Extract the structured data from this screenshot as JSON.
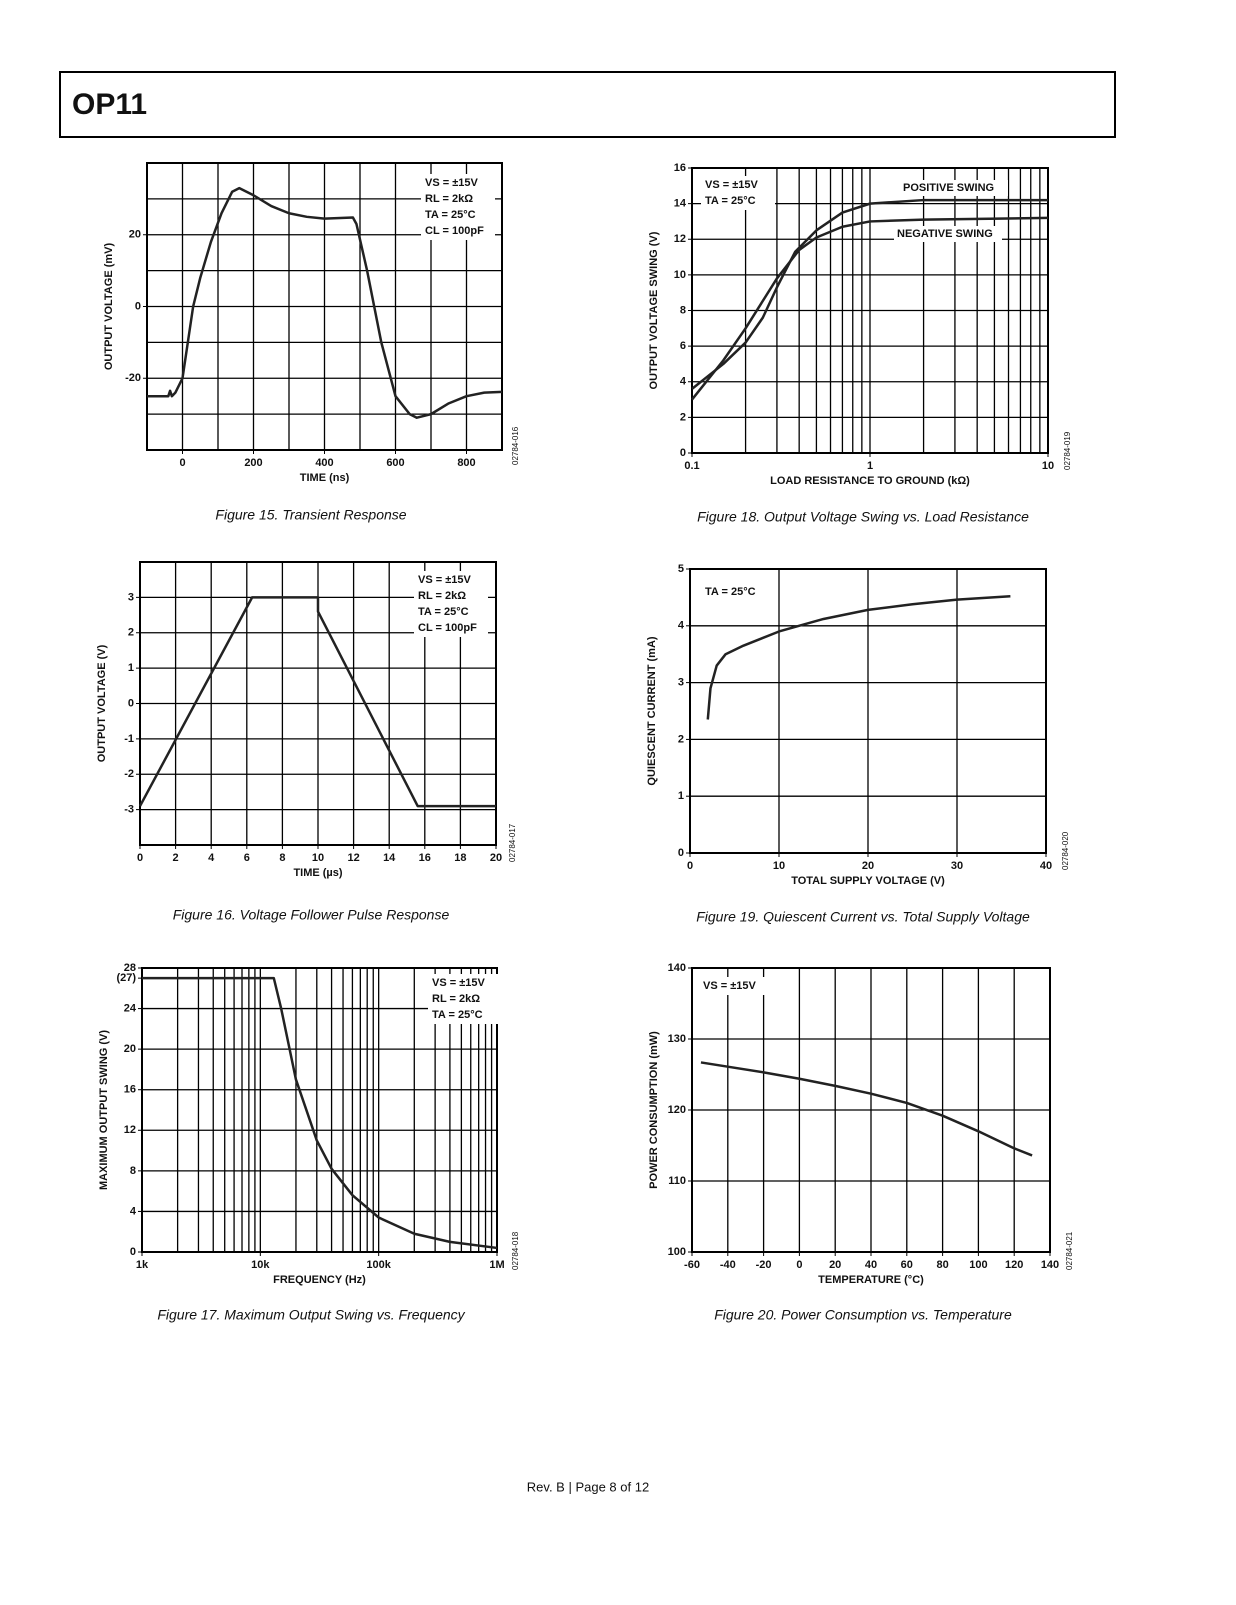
{
  "header": {
    "title": "OP11"
  },
  "footer": "Rev. B | Page 8 of 12",
  "chart_data": [
    {
      "type": "line",
      "title": "Figure 15. Transient Response",
      "xlabel": "TIME (ns)",
      "ylabel": "OUTPUT VOLTAGE (mV)",
      "code": "02784-016",
      "annotations": [
        "VS = ±15V",
        "RL = 2kΩ",
        "TA = 25°C",
        "CL = 100pF"
      ],
      "xlim": [
        -100,
        900
      ],
      "ylim": [
        -40,
        40
      ],
      "xticks": [
        0,
        200,
        400,
        600,
        800
      ],
      "yticks": [
        -20,
        0,
        20
      ],
      "xgrid": [
        -100,
        0,
        100,
        200,
        300,
        400,
        500,
        600,
        700,
        800,
        900
      ],
      "ygrid": [
        -40,
        -30,
        -20,
        -10,
        0,
        10,
        20,
        30,
        40
      ],
      "series": [
        {
          "color": "#222",
          "x": [
            -100,
            -40,
            -35,
            -30,
            -20,
            0,
            30,
            50,
            80,
            110,
            140,
            160,
            200,
            250,
            300,
            350,
            400,
            480,
            490,
            520,
            560,
            600,
            640,
            660,
            700,
            750,
            800,
            850,
            900
          ],
          "values": [
            -25,
            -25,
            -23.5,
            -25,
            -24,
            -20,
            0,
            8,
            18,
            26,
            32,
            33,
            31,
            28,
            26,
            25,
            24.5,
            24.8,
            23,
            10,
            -10,
            -25,
            -30,
            -31,
            -30,
            -27,
            -25,
            -24,
            -23.8
          ]
        }
      ]
    },
    {
      "type": "line",
      "title": "Figure 18. Output Voltage Swing vs. Load Resistance",
      "xlabel": "LOAD RESISTANCE TO GROUND (kΩ)",
      "ylabel": "OUTPUT VOLTAGE SWING (V)",
      "code": "02784-019",
      "annotations": [
        "VS = ±15V",
        "TA = 25°C"
      ],
      "xscale": "log",
      "xlim": [
        0.1,
        10
      ],
      "ylim": [
        0,
        16
      ],
      "xticks": [
        0.1,
        1,
        10
      ],
      "yticks": [
        0,
        2,
        4,
        6,
        8,
        10,
        12,
        14,
        16
      ],
      "xgrid": [
        0.2,
        0.3,
        0.4,
        0.5,
        0.6,
        0.7,
        0.8,
        0.9,
        1,
        2,
        3,
        4,
        5,
        6,
        7,
        8,
        9
      ],
      "ygrid": [
        2,
        4,
        6,
        8,
        10,
        12,
        14
      ],
      "series": [
        {
          "name": "POSITIVE SWING",
          "color": "#222",
          "x": [
            0.1,
            0.15,
            0.2,
            0.25,
            0.3,
            0.38,
            0.5,
            0.7,
            1,
            2,
            10
          ],
          "values": [
            3.6,
            5,
            6.2,
            7.6,
            9.3,
            11.3,
            12.5,
            13.5,
            14,
            14.2,
            14.2
          ]
        },
        {
          "name": "NEGATIVE SWING",
          "color": "#222",
          "x": [
            0.1,
            0.15,
            0.2,
            0.3,
            0.4,
            0.5,
            0.7,
            1,
            2,
            10
          ],
          "values": [
            3,
            5.2,
            7,
            9.8,
            11.4,
            12.1,
            12.7,
            13,
            13.1,
            13.2
          ]
        }
      ]
    },
    {
      "type": "line",
      "title": "Figure 16. Voltage Follower Pulse Response",
      "xlabel": "TIME (µs)",
      "ylabel": "OUTPUT VOLTAGE (V)",
      "code": "02784-017",
      "annotations": [
        "VS = ±15V",
        "RL = 2kΩ",
        "TA = 25°C",
        "CL = 100pF"
      ],
      "xlim": [
        0,
        20
      ],
      "ylim": [
        -4,
        4
      ],
      "xticks": [
        0,
        2,
        4,
        6,
        8,
        10,
        12,
        14,
        16,
        18,
        20
      ],
      "yticks": [
        -3,
        -2,
        -1,
        0,
        1,
        2,
        3
      ],
      "ygrid": [
        -4,
        -3,
        -2,
        -1,
        0,
        1,
        2,
        3,
        4
      ],
      "series": [
        {
          "color": "#222",
          "x": [
            0,
            6.3,
            10,
            10,
            15.6,
            20
          ],
          "values": [
            -2.9,
            3,
            3,
            2.6,
            -2.9,
            -2.9
          ]
        }
      ]
    },
    {
      "type": "line",
      "title": "Figure 19. Quiescent Current vs. Total Supply Voltage",
      "xlabel": "TOTAL SUPPLY VOLTAGE (V)",
      "ylabel": "QUIESCENT CURRENT (mA)",
      "code": "02784-020",
      "annotations": [
        "TA = 25°C"
      ],
      "xlim": [
        0,
        40
      ],
      "ylim": [
        0,
        5
      ],
      "xticks": [
        0,
        10,
        20,
        30,
        40
      ],
      "yticks": [
        0,
        1,
        2,
        3,
        4,
        5
      ],
      "series": [
        {
          "color": "#222",
          "x": [
            2,
            2.3,
            3,
            4,
            6,
            10,
            15,
            20,
            25,
            30,
            36
          ],
          "values": [
            2.35,
            2.9,
            3.3,
            3.5,
            3.65,
            3.9,
            4.12,
            4.28,
            4.38,
            4.46,
            4.52
          ]
        }
      ]
    },
    {
      "type": "line",
      "title": "Figure 17. Maximum Output Swing vs. Frequency",
      "xlabel": "FREQUENCY (Hz)",
      "ylabel": "MAXIMUM OUTPUT SWING (V)",
      "code": "02784-018",
      "annotations": [
        "VS = ±15V",
        "RL = 2kΩ",
        "TA = 25°C"
      ],
      "xscale": "log",
      "xlim": [
        1000,
        1000000
      ],
      "ylim": [
        0,
        28
      ],
      "xticks": [
        {
          "value": 1000,
          "label": "1k"
        },
        {
          "value": 10000,
          "label": "10k"
        },
        {
          "value": 100000,
          "label": "100k"
        },
        {
          "value": 1000000,
          "label": "1M"
        }
      ],
      "yticks": [
        0,
        4,
        8,
        12,
        16,
        20,
        24,
        {
          "value": 27,
          "label": "(27)"
        },
        28
      ],
      "xgrid": [
        2000,
        3000,
        4000,
        5000,
        6000,
        7000,
        8000,
        9000,
        10000,
        20000,
        30000,
        40000,
        50000,
        60000,
        70000,
        80000,
        90000,
        100000,
        200000,
        300000,
        400000,
        500000,
        600000,
        700000,
        800000,
        900000
      ],
      "ygrid": [
        4,
        8,
        12,
        16,
        20,
        24
      ],
      "series": [
        {
          "color": "#222",
          "x": [
            1000,
            13000,
            15000,
            20000,
            30000,
            40000,
            60000,
            100000,
            200000,
            400000,
            1000000
          ],
          "values": [
            27,
            27,
            24,
            17,
            11,
            8.2,
            5.6,
            3.4,
            1.8,
            1,
            0.4
          ]
        }
      ]
    },
    {
      "type": "line",
      "title": "Figure 20. Power Consumption vs. Temperature",
      "xlabel": "TEMPERATURE (°C)",
      "ylabel": "POWER CONSUMPTION (mW)",
      "code": "02784-021",
      "annotations": [
        "VS = ±15V"
      ],
      "xlim": [
        -60,
        140
      ],
      "ylim": [
        100,
        140
      ],
      "xticks": [
        -60,
        -40,
        -20,
        0,
        20,
        40,
        60,
        80,
        100,
        120,
        140
      ],
      "yticks": [
        100,
        110,
        120,
        130,
        140
      ],
      "series": [
        {
          "color": "#222",
          "x": [
            -55,
            -40,
            -20,
            0,
            20,
            40,
            60,
            80,
            100,
            120,
            130
          ],
          "values": [
            126.7,
            126.1,
            125.3,
            124.4,
            123.4,
            122.3,
            121,
            119.2,
            117,
            114.6,
            113.6
          ]
        }
      ]
    }
  ]
}
